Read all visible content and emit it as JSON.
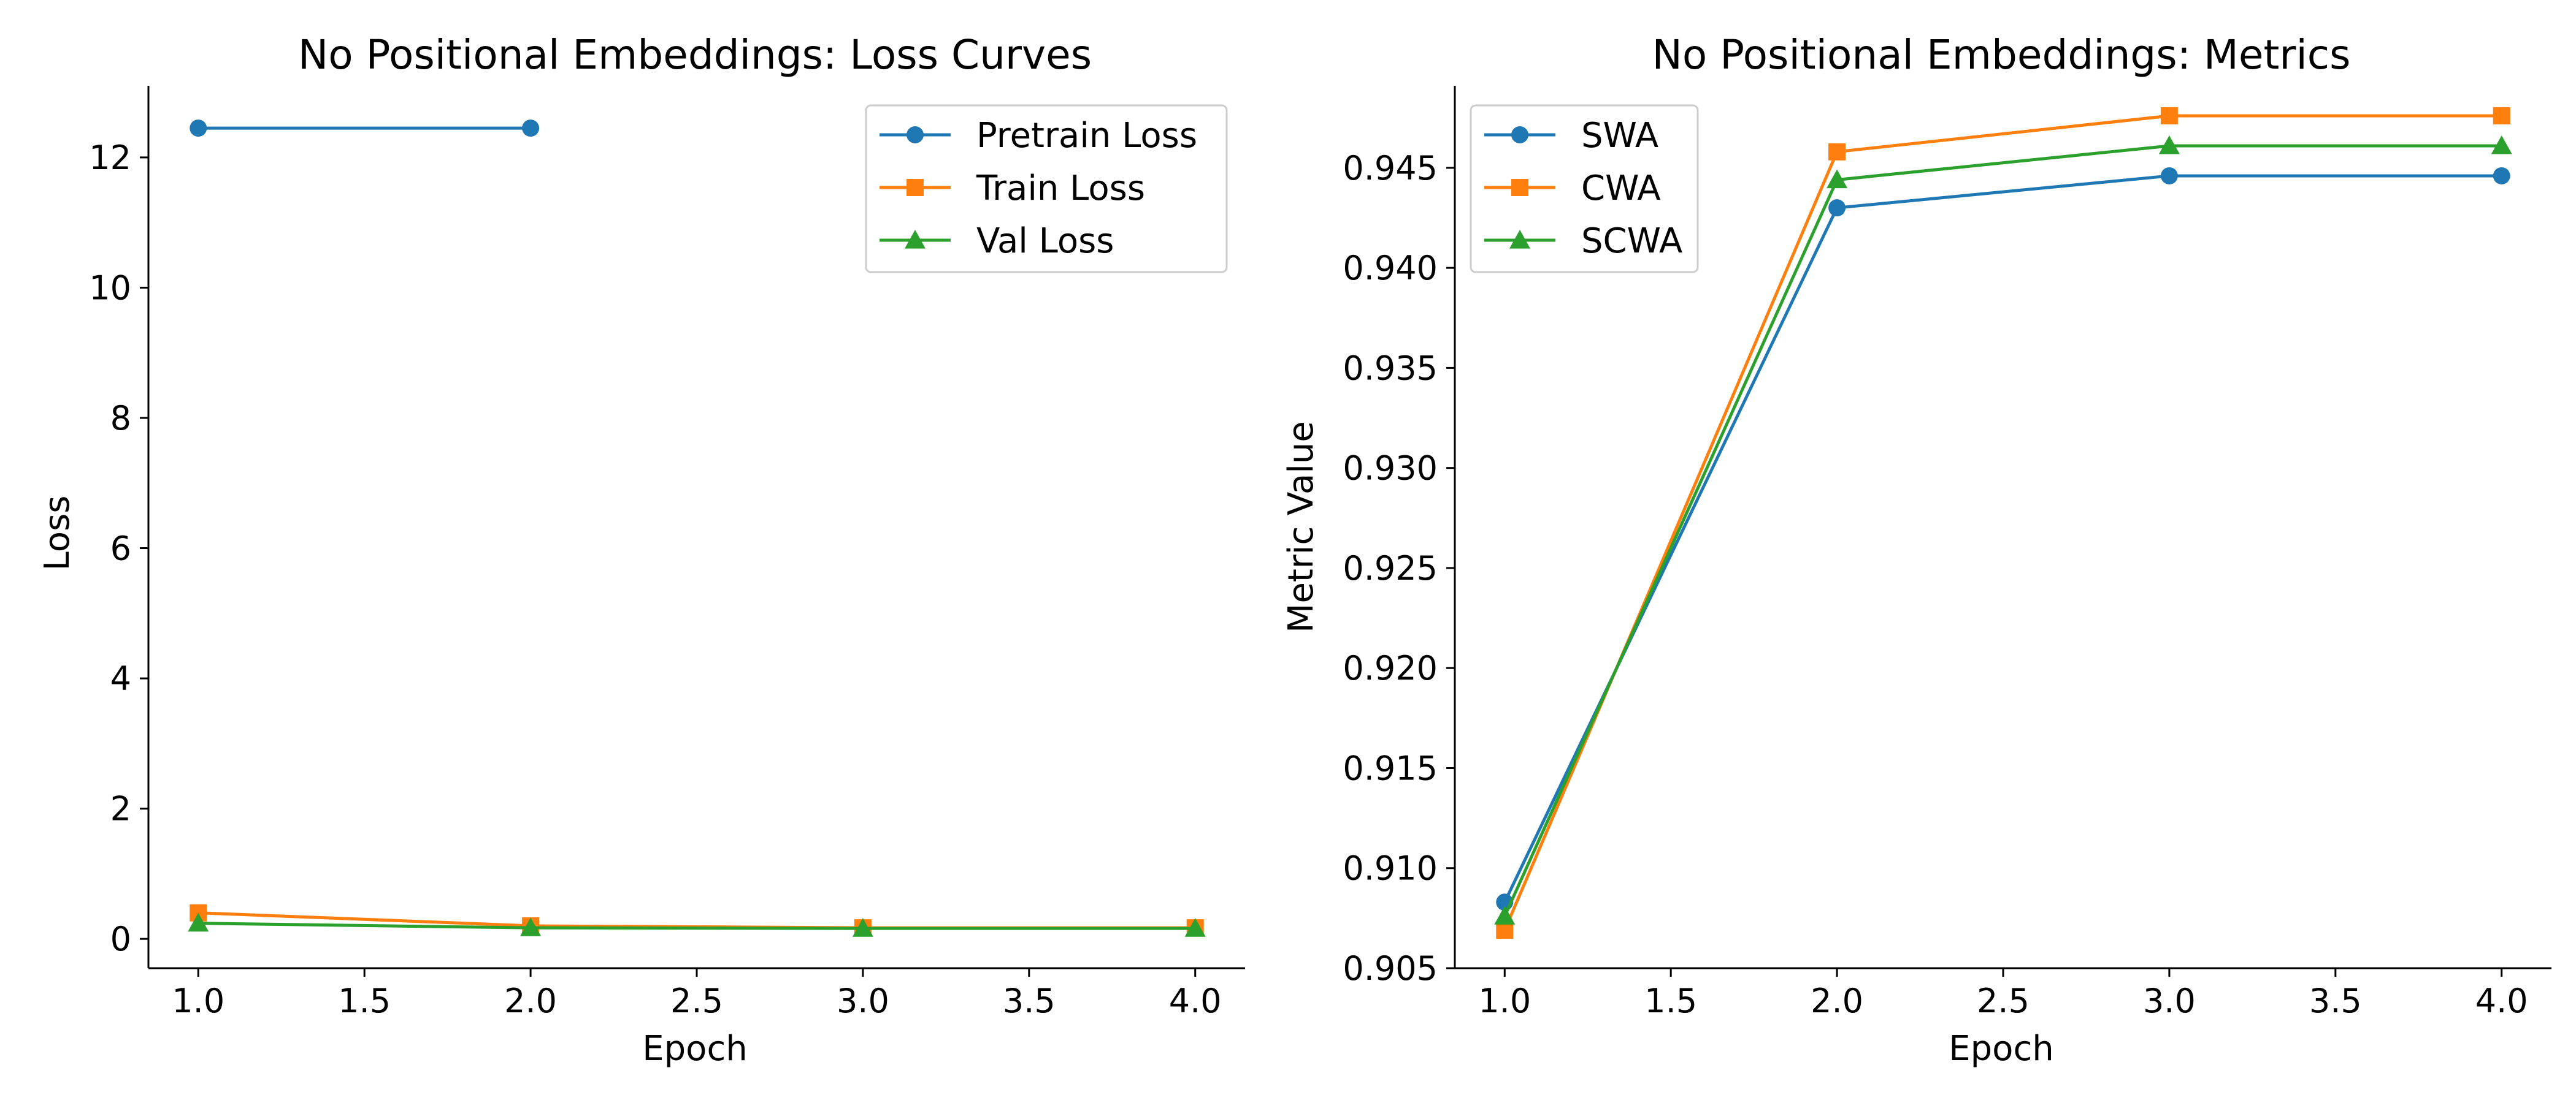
{
  "figure": {
    "background": "#ffffff"
  },
  "chart_data": [
    {
      "type": "line",
      "title": "No Positional Embeddings: Loss Curves",
      "xlabel": "Epoch",
      "ylabel": "Loss",
      "xlim": [
        0.85,
        4.15
      ],
      "ylim": [
        -0.45,
        13.1
      ],
      "xticks": [
        1.0,
        1.5,
        2.0,
        2.5,
        3.0,
        3.5,
        4.0
      ],
      "xtick_labels": [
        "1.0",
        "1.5",
        "2.0",
        "2.5",
        "3.0",
        "3.5",
        "4.0"
      ],
      "yticks": [
        0,
        2,
        4,
        6,
        8,
        10,
        12
      ],
      "ytick_labels": [
        "0",
        "2",
        "4",
        "6",
        "8",
        "10",
        "12"
      ],
      "grid": false,
      "legend_placement": "top-right",
      "series": [
        {
          "name": "Pretrain Loss",
          "color": "#1f77b4",
          "marker": "circle",
          "x": [
            1,
            2
          ],
          "values": [
            12.45,
            12.45
          ]
        },
        {
          "name": "Train Loss",
          "color": "#ff7f0e",
          "marker": "square",
          "x": [
            1,
            2,
            3,
            4
          ],
          "values": [
            0.4,
            0.2,
            0.17,
            0.17
          ]
        },
        {
          "name": "Val Loss",
          "color": "#2ca02c",
          "marker": "triangle",
          "x": [
            1,
            2,
            3,
            4
          ],
          "values": [
            0.24,
            0.17,
            0.16,
            0.16
          ]
        }
      ]
    },
    {
      "type": "line",
      "title": "No Positional Embeddings: Metrics",
      "xlabel": "Epoch",
      "ylabel": "Metric Value",
      "xlim": [
        0.85,
        4.15
      ],
      "ylim": [
        0.905,
        0.9491
      ],
      "xticks": [
        1.0,
        1.5,
        2.0,
        2.5,
        3.0,
        3.5,
        4.0
      ],
      "xtick_labels": [
        "1.0",
        "1.5",
        "2.0",
        "2.5",
        "3.0",
        "3.5",
        "4.0"
      ],
      "yticks": [
        0.905,
        0.91,
        0.915,
        0.92,
        0.925,
        0.93,
        0.935,
        0.94,
        0.945
      ],
      "ytick_labels": [
        "0.905",
        "0.910",
        "0.915",
        "0.920",
        "0.925",
        "0.930",
        "0.935",
        "0.940",
        "0.945"
      ],
      "grid": false,
      "legend_placement": "top-left",
      "series": [
        {
          "name": "SWA",
          "color": "#1f77b4",
          "marker": "circle",
          "x": [
            1,
            2,
            3,
            4
          ],
          "values": [
            0.9083,
            0.943,
            0.9446,
            0.9446
          ]
        },
        {
          "name": "CWA",
          "color": "#ff7f0e",
          "marker": "square",
          "x": [
            1,
            2,
            3,
            4
          ],
          "values": [
            0.9069,
            0.9458,
            0.9476,
            0.9476
          ]
        },
        {
          "name": "SCWA",
          "color": "#2ca02c",
          "marker": "triangle",
          "x": [
            1,
            2,
            3,
            4
          ],
          "values": [
            0.9076,
            0.9444,
            0.9461,
            0.9461
          ]
        }
      ]
    }
  ]
}
